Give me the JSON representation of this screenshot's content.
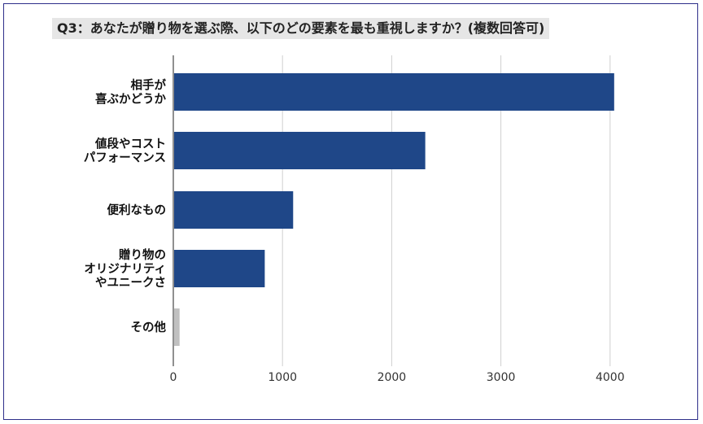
{
  "title": "Q3：あなたが贈り物を選ぶ際、以下のどの要素を最も重視しますか？(複数回答可)",
  "chart_data": {
    "type": "bar",
    "orientation": "horizontal",
    "title": "Q3：あなたが贈り物を選ぶ際、以下のどの要素を最も重視しますか？(複数回答可)",
    "categories": [
      [
        "相手が",
        "喜ぶかどうか"
      ],
      [
        "値段やコスト",
        "パフォーマンス"
      ],
      [
        "便利なもの"
      ],
      [
        "贈り物の",
        "オリジナリティ",
        "やユニークさ"
      ],
      [
        "その他"
      ]
    ],
    "values": [
      4030,
      2300,
      1090,
      830,
      50
    ],
    "bar_colors": [
      "#1f4788",
      "#1f4788",
      "#1f4788",
      "#1f4788",
      "#c0c0c0"
    ],
    "xlim": [
      0,
      4500
    ],
    "xticks": [
      0,
      1000,
      2000,
      3000,
      4000
    ],
    "xlabel": "",
    "ylabel": "",
    "grid": "vertical",
    "legend": "none"
  }
}
